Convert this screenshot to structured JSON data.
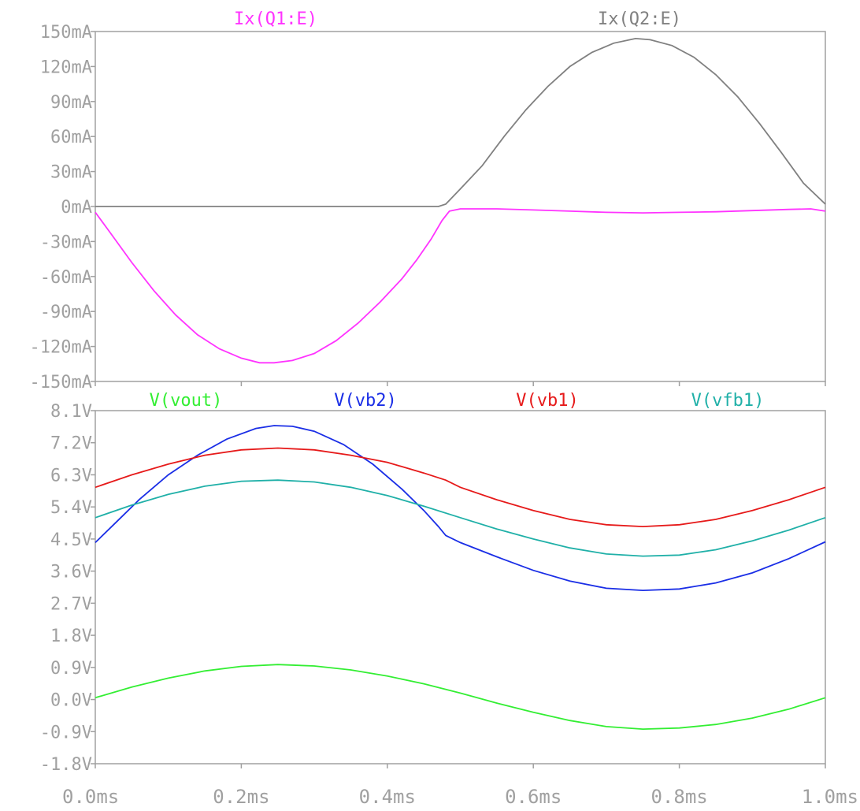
{
  "chart_data": [
    {
      "type": "line",
      "title": "",
      "xlabel": "",
      "ylabel": "",
      "xlim": [
        0,
        1.0
      ],
      "ylim": [
        -150,
        150
      ],
      "x_unit": "ms",
      "y_unit": "mA",
      "grid": false,
      "legend": "top",
      "x_ticks": [
        "0.0ms",
        "0.2ms",
        "0.4ms",
        "0.6ms",
        "0.8ms",
        "1.0ms"
      ],
      "y_ticks": [
        "150mA",
        "120mA",
        "90mA",
        "60mA",
        "30mA",
        "0mA",
        "-30mA",
        "-60mA",
        "-90mA",
        "-120mA",
        "-150mA"
      ],
      "series": [
        {
          "name": "Ix(Q1:E)",
          "color": "#ff33ff",
          "points": [
            [
              0.0,
              -5
            ],
            [
              0.02,
              -22
            ],
            [
              0.05,
              -48
            ],
            [
              0.08,
              -72
            ],
            [
              0.11,
              -93
            ],
            [
              0.14,
              -110
            ],
            [
              0.17,
              -122
            ],
            [
              0.2,
              -130
            ],
            [
              0.225,
              -134
            ],
            [
              0.245,
              -134
            ],
            [
              0.27,
              -132
            ],
            [
              0.3,
              -126
            ],
            [
              0.33,
              -115
            ],
            [
              0.36,
              -100
            ],
            [
              0.39,
              -82
            ],
            [
              0.42,
              -62
            ],
            [
              0.44,
              -46
            ],
            [
              0.46,
              -28
            ],
            [
              0.475,
              -12
            ],
            [
              0.485,
              -4
            ],
            [
              0.5,
              -2
            ],
            [
              0.55,
              -2
            ],
            [
              0.6,
              -3
            ],
            [
              0.65,
              -4
            ],
            [
              0.7,
              -5
            ],
            [
              0.75,
              -5.5
            ],
            [
              0.8,
              -5
            ],
            [
              0.85,
              -4.5
            ],
            [
              0.9,
              -3.5
            ],
            [
              0.95,
              -2.5
            ],
            [
              0.98,
              -2
            ],
            [
              1.0,
              -4
            ]
          ]
        },
        {
          "name": "Ix(Q2:E)",
          "color": "#808080",
          "points": [
            [
              0.0,
              0
            ],
            [
              0.1,
              0
            ],
            [
              0.2,
              0
            ],
            [
              0.3,
              0
            ],
            [
              0.4,
              0
            ],
            [
              0.47,
              0
            ],
            [
              0.48,
              2
            ],
            [
              0.5,
              15
            ],
            [
              0.53,
              35
            ],
            [
              0.56,
              60
            ],
            [
              0.59,
              83
            ],
            [
              0.62,
              103
            ],
            [
              0.65,
              120
            ],
            [
              0.68,
              132
            ],
            [
              0.71,
              140
            ],
            [
              0.74,
              144
            ],
            [
              0.76,
              143
            ],
            [
              0.79,
              138
            ],
            [
              0.82,
              128
            ],
            [
              0.85,
              113
            ],
            [
              0.88,
              94
            ],
            [
              0.91,
              71
            ],
            [
              0.94,
              46
            ],
            [
              0.97,
              20
            ],
            [
              1.0,
              2
            ]
          ]
        }
      ]
    },
    {
      "type": "line",
      "title": "",
      "xlabel": "",
      "ylabel": "",
      "xlim": [
        0,
        1.0
      ],
      "ylim": [
        -1.8,
        8.1
      ],
      "x_unit": "ms",
      "y_unit": "V",
      "grid": false,
      "legend": "top",
      "x_ticks": [
        "0.0ms",
        "0.2ms",
        "0.4ms",
        "0.6ms",
        "0.8ms",
        "1.0ms"
      ],
      "y_ticks": [
        "8.1V",
        "7.2V",
        "6.3V",
        "5.4V",
        "4.5V",
        "3.6V",
        "2.7V",
        "1.8V",
        "0.9V",
        "0.0V",
        "-0.9V",
        "-1.8V"
      ],
      "series": [
        {
          "name": "V(vout)",
          "color": "#33ee33",
          "points": [
            [
              0.0,
              0.05
            ],
            [
              0.05,
              0.35
            ],
            [
              0.1,
              0.6
            ],
            [
              0.15,
              0.8
            ],
            [
              0.2,
              0.93
            ],
            [
              0.25,
              0.98
            ],
            [
              0.3,
              0.94
            ],
            [
              0.35,
              0.83
            ],
            [
              0.4,
              0.66
            ],
            [
              0.45,
              0.44
            ],
            [
              0.5,
              0.18
            ],
            [
              0.55,
              -0.1
            ],
            [
              0.6,
              -0.36
            ],
            [
              0.65,
              -0.59
            ],
            [
              0.7,
              -0.76
            ],
            [
              0.75,
              -0.83
            ],
            [
              0.8,
              -0.8
            ],
            [
              0.85,
              -0.7
            ],
            [
              0.9,
              -0.52
            ],
            [
              0.95,
              -0.27
            ],
            [
              1.0,
              0.05
            ]
          ]
        },
        {
          "name": "V(vb2)",
          "color": "#1a2ee6",
          "points": [
            [
              0.0,
              4.4
            ],
            [
              0.03,
              5.0
            ],
            [
              0.06,
              5.6
            ],
            [
              0.1,
              6.3
            ],
            [
              0.14,
              6.85
            ],
            [
              0.18,
              7.3
            ],
            [
              0.22,
              7.6
            ],
            [
              0.245,
              7.68
            ],
            [
              0.27,
              7.66
            ],
            [
              0.3,
              7.52
            ],
            [
              0.34,
              7.15
            ],
            [
              0.38,
              6.6
            ],
            [
              0.42,
              5.9
            ],
            [
              0.45,
              5.3
            ],
            [
              0.47,
              4.85
            ],
            [
              0.48,
              4.6
            ],
            [
              0.5,
              4.4
            ],
            [
              0.55,
              4.0
            ],
            [
              0.6,
              3.62
            ],
            [
              0.65,
              3.32
            ],
            [
              0.7,
              3.12
            ],
            [
              0.75,
              3.06
            ],
            [
              0.8,
              3.1
            ],
            [
              0.85,
              3.27
            ],
            [
              0.9,
              3.55
            ],
            [
              0.95,
              3.95
            ],
            [
              1.0,
              4.42
            ]
          ]
        },
        {
          "name": "V(vb1)",
          "color": "#e61a1a",
          "points": [
            [
              0.0,
              5.95
            ],
            [
              0.05,
              6.3
            ],
            [
              0.1,
              6.6
            ],
            [
              0.15,
              6.85
            ],
            [
              0.2,
              7.0
            ],
            [
              0.25,
              7.05
            ],
            [
              0.3,
              7.0
            ],
            [
              0.35,
              6.85
            ],
            [
              0.4,
              6.65
            ],
            [
              0.45,
              6.35
            ],
            [
              0.48,
              6.15
            ],
            [
              0.5,
              5.95
            ],
            [
              0.55,
              5.6
            ],
            [
              0.6,
              5.3
            ],
            [
              0.65,
              5.05
            ],
            [
              0.7,
              4.9
            ],
            [
              0.75,
              4.85
            ],
            [
              0.8,
              4.9
            ],
            [
              0.85,
              5.05
            ],
            [
              0.9,
              5.3
            ],
            [
              0.95,
              5.6
            ],
            [
              1.0,
              5.95
            ]
          ]
        },
        {
          "name": "V(vfb1)",
          "color": "#20b0a8",
          "points": [
            [
              0.0,
              5.1
            ],
            [
              0.05,
              5.45
            ],
            [
              0.1,
              5.75
            ],
            [
              0.15,
              5.98
            ],
            [
              0.2,
              6.12
            ],
            [
              0.25,
              6.15
            ],
            [
              0.3,
              6.1
            ],
            [
              0.35,
              5.95
            ],
            [
              0.4,
              5.72
            ],
            [
              0.45,
              5.42
            ],
            [
              0.5,
              5.1
            ],
            [
              0.55,
              4.78
            ],
            [
              0.6,
              4.5
            ],
            [
              0.65,
              4.25
            ],
            [
              0.7,
              4.08
            ],
            [
              0.75,
              4.02
            ],
            [
              0.8,
              4.05
            ],
            [
              0.85,
              4.2
            ],
            [
              0.9,
              4.45
            ],
            [
              0.95,
              4.75
            ],
            [
              1.0,
              5.1
            ]
          ]
        }
      ]
    }
  ]
}
